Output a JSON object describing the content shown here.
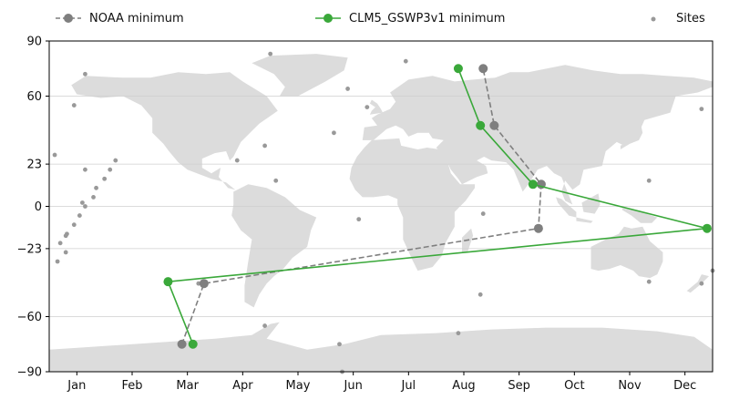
{
  "chart_data": {
    "type": "scatter",
    "title": "",
    "xlabel": "",
    "ylabel": "",
    "x_axis": {
      "categories": [
        "Jan",
        "Feb",
        "Mar",
        "Apr",
        "May",
        "Jun",
        "Jul",
        "Aug",
        "Sep",
        "Oct",
        "Nov",
        "Dec"
      ],
      "xlim": [
        0.5,
        12.5
      ]
    },
    "y_axis": {
      "ticks": [
        90,
        60,
        23,
        0,
        -23,
        -60,
        -90
      ],
      "ylim": [
        -90,
        90
      ]
    },
    "grid": "horizontal only",
    "legend_position": "top",
    "legend": [
      {
        "label": "NOAA minimum",
        "color": "#7f7f7f",
        "style": "dashed line with circle markers"
      },
      {
        "label": "CLM5_GSWP3v1 minimum",
        "color": "#3aa83a",
        "style": "solid line with circle markers"
      },
      {
        "label": "Sites",
        "color": "#999999",
        "style": "small dots"
      }
    ],
    "series": [
      {
        "name": "NOAA minimum",
        "color": "#7f7f7f",
        "line": "dashed",
        "points": [
          {
            "month": 2.9,
            "lat": -75
          },
          {
            "month": 3.3,
            "lat": -42
          },
          {
            "month": 9.35,
            "lat": -12
          },
          {
            "month": 9.4,
            "lat": 12
          },
          {
            "month": 8.55,
            "lat": 44
          },
          {
            "month": 8.35,
            "lat": 75
          }
        ]
      },
      {
        "name": "CLM5_GSWP3v1 minimum",
        "color": "#3aa83a",
        "line": "solid",
        "points": [
          {
            "month": 3.1,
            "lat": -75
          },
          {
            "month": 2.65,
            "lat": -41
          },
          {
            "month": 12.4,
            "lat": -12
          },
          {
            "month": 9.25,
            "lat": 12
          },
          {
            "month": 8.3,
            "lat": 44
          },
          {
            "month": 7.9,
            "lat": 75
          }
        ]
      },
      {
        "name": "Sites",
        "color": "#999999",
        "points": [
          {
            "month": 0.6,
            "lat": 28
          },
          {
            "month": 0.65,
            "lat": -30
          },
          {
            "month": 0.7,
            "lat": -20
          },
          {
            "month": 0.8,
            "lat": -16
          },
          {
            "month": 0.82,
            "lat": -15
          },
          {
            "month": 0.8,
            "lat": -25
          },
          {
            "month": 0.95,
            "lat": -10
          },
          {
            "month": 1.05,
            "lat": -5
          },
          {
            "month": 1.1,
            "lat": 2
          },
          {
            "month": 1.15,
            "lat": 0
          },
          {
            "month": 1.3,
            "lat": 5
          },
          {
            "month": 1.35,
            "lat": 10
          },
          {
            "month": 1.5,
            "lat": 15
          },
          {
            "month": 1.6,
            "lat": 20
          },
          {
            "month": 1.7,
            "lat": 25
          },
          {
            "month": 1.15,
            "lat": 20
          },
          {
            "month": 0.95,
            "lat": 55
          },
          {
            "month": 1.15,
            "lat": 72
          },
          {
            "month": 3.2,
            "lat": -42
          },
          {
            "month": 3.9,
            "lat": 25
          },
          {
            "month": 4.4,
            "lat": 33
          },
          {
            "month": 4.4,
            "lat": -65
          },
          {
            "month": 4.6,
            "lat": 14
          },
          {
            "month": 4.5,
            "lat": 83
          },
          {
            "month": 5.65,
            "lat": 40
          },
          {
            "month": 5.8,
            "lat": -90
          },
          {
            "month": 5.75,
            "lat": -75
          },
          {
            "month": 5.9,
            "lat": 64
          },
          {
            "month": 6.1,
            "lat": -7
          },
          {
            "month": 6.25,
            "lat": 54
          },
          {
            "month": 6.95,
            "lat": 79
          },
          {
            "month": 7.9,
            "lat": -69
          },
          {
            "month": 8.3,
            "lat": -48
          },
          {
            "month": 8.35,
            "lat": -4
          },
          {
            "month": 11.35,
            "lat": 14
          },
          {
            "month": 11.35,
            "lat": -41
          },
          {
            "month": 12.3,
            "lat": 53
          },
          {
            "month": 12.3,
            "lat": -42
          },
          {
            "month": 12.5,
            "lat": -35
          }
        ]
      }
    ],
    "background": "world map (land in light gray)"
  }
}
